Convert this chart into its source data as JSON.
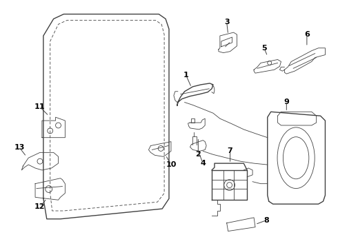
{
  "bg_color": "#ffffff",
  "line_color": "#404040",
  "label_color": "#000000",
  "lw_main": 1.0,
  "lw_thin": 0.6,
  "figsize": [
    4.9,
    3.6
  ],
  "dpi": 100
}
